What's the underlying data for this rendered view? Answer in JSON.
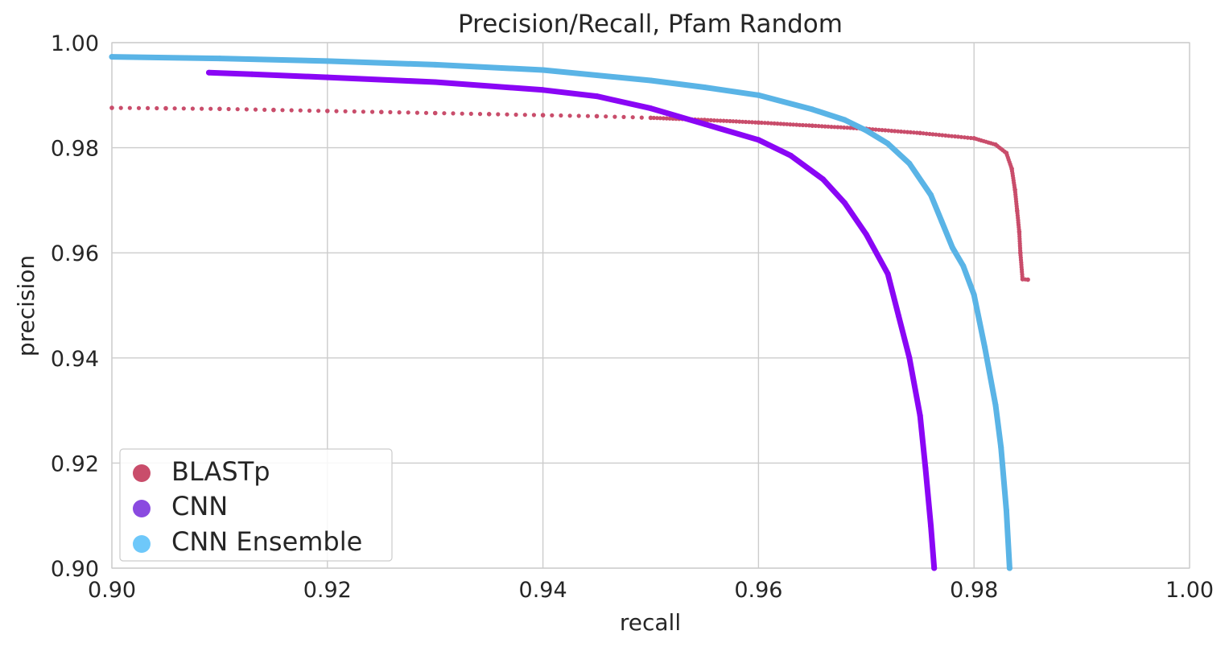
{
  "chart_data": {
    "type": "scatter",
    "title": "Precision/Recall, Pfam Random",
    "xlabel": "recall",
    "ylabel": "precision",
    "xlim": [
      0.9,
      1.0
    ],
    "ylim": [
      0.9,
      1.0
    ],
    "xticks": [
      "0.90",
      "0.92",
      "0.94",
      "0.96",
      "0.98",
      "1.00"
    ],
    "yticks": [
      "0.90",
      "0.92",
      "0.94",
      "0.96",
      "0.98",
      "1.00"
    ],
    "grid": true,
    "legend_position": "lower-left",
    "series": [
      {
        "name": "BLASTp",
        "color": "#c94d6b",
        "legend_color": "#c94d6b",
        "marker": "sparse-dots",
        "points": [
          [
            0.9,
            0.9876
          ],
          [
            0.905,
            0.9875
          ],
          [
            0.91,
            0.9874
          ],
          [
            0.915,
            0.9872
          ],
          [
            0.92,
            0.987
          ],
          [
            0.925,
            0.9868
          ],
          [
            0.93,
            0.9866
          ],
          [
            0.935,
            0.9864
          ],
          [
            0.94,
            0.9862
          ],
          [
            0.945,
            0.986
          ],
          [
            0.95,
            0.9857
          ],
          [
            0.955,
            0.9853
          ],
          [
            0.96,
            0.9848
          ],
          [
            0.965,
            0.9842
          ],
          [
            0.97,
            0.9836
          ],
          [
            0.975,
            0.9828
          ],
          [
            0.98,
            0.9818
          ],
          [
            0.982,
            0.9806
          ],
          [
            0.983,
            0.979
          ],
          [
            0.9835,
            0.976
          ],
          [
            0.9838,
            0.972
          ],
          [
            0.984,
            0.968
          ],
          [
            0.9842,
            0.964
          ],
          [
            0.9843,
            0.96
          ],
          [
            0.9845,
            0.955
          ],
          [
            0.985,
            0.9549
          ]
        ]
      },
      {
        "name": "CNN",
        "color": "#8a06f5",
        "legend_color": "#8a4ae0",
        "marker": "dense-line",
        "points": [
          [
            0.909,
            0.9943
          ],
          [
            0.913,
            0.994
          ],
          [
            0.92,
            0.9934
          ],
          [
            0.93,
            0.9925
          ],
          [
            0.94,
            0.991
          ],
          [
            0.945,
            0.9898
          ],
          [
            0.95,
            0.9875
          ],
          [
            0.955,
            0.9845
          ],
          [
            0.96,
            0.9815
          ],
          [
            0.963,
            0.9785
          ],
          [
            0.966,
            0.974
          ],
          [
            0.968,
            0.9695
          ],
          [
            0.97,
            0.9635
          ],
          [
            0.972,
            0.956
          ],
          [
            0.973,
            0.948
          ],
          [
            0.974,
            0.94
          ],
          [
            0.975,
            0.929
          ],
          [
            0.9755,
            0.919
          ],
          [
            0.976,
            0.908
          ],
          [
            0.9763,
            0.9
          ]
        ]
      },
      {
        "name": "CNN Ensemble",
        "color": "#5ab4e6",
        "legend_color": "#6ec8fa",
        "marker": "dense-line",
        "points": [
          [
            0.9,
            0.9973
          ],
          [
            0.91,
            0.997
          ],
          [
            0.92,
            0.9965
          ],
          [
            0.93,
            0.9958
          ],
          [
            0.94,
            0.9948
          ],
          [
            0.95,
            0.9928
          ],
          [
            0.955,
            0.9915
          ],
          [
            0.96,
            0.99
          ],
          [
            0.965,
            0.9873
          ],
          [
            0.968,
            0.9853
          ],
          [
            0.97,
            0.9833
          ],
          [
            0.972,
            0.9808
          ],
          [
            0.974,
            0.977
          ],
          [
            0.976,
            0.971
          ],
          [
            0.977,
            0.966
          ],
          [
            0.978,
            0.961
          ],
          [
            0.979,
            0.9575
          ],
          [
            0.98,
            0.952
          ],
          [
            0.981,
            0.942
          ],
          [
            0.982,
            0.931
          ],
          [
            0.9825,
            0.923
          ],
          [
            0.983,
            0.911
          ],
          [
            0.9833,
            0.9
          ]
        ]
      }
    ]
  }
}
